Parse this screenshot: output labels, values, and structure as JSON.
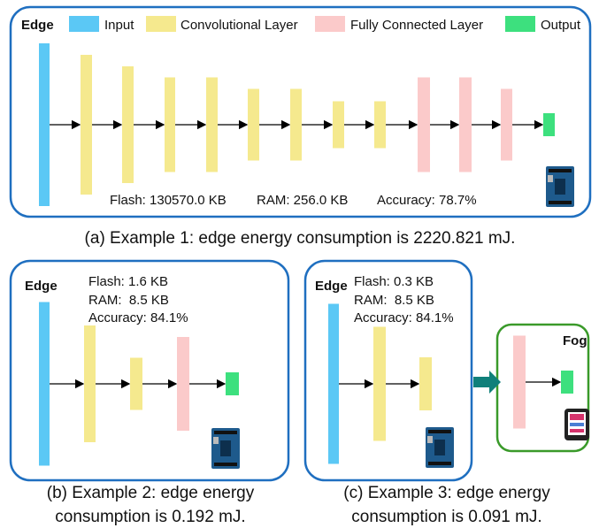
{
  "legend": {
    "title": "Edge",
    "items": [
      "Input",
      "Convolutional Layer",
      "Fully Connected Layer",
      "Output"
    ]
  },
  "panel_a": {
    "metrics": [
      "Flash: 130570.0 KB",
      "RAM: 256.0 KB",
      "Accuracy: 78.7%"
    ],
    "caption": "(a) Example 1: edge energy consumption is 2220.821 mJ."
  },
  "panel_b": {
    "label": "Edge",
    "metrics": [
      "Flash: 1.6 KB",
      "RAM:  8.5 KB",
      "Accuracy: 84.1%"
    ],
    "caption": [
      "(b) Example 2: edge energy",
      "consumption is 0.192 mJ."
    ]
  },
  "panel_c": {
    "label": "Edge",
    "fog_label": "Fog",
    "metrics": [
      "Flash: 0.3 KB",
      "RAM:  8.5 KB",
      "Accuracy: 84.1%"
    ],
    "caption": [
      "(c) Example 3: edge energy",
      "consumption is 0.091 mJ."
    ]
  }
}
